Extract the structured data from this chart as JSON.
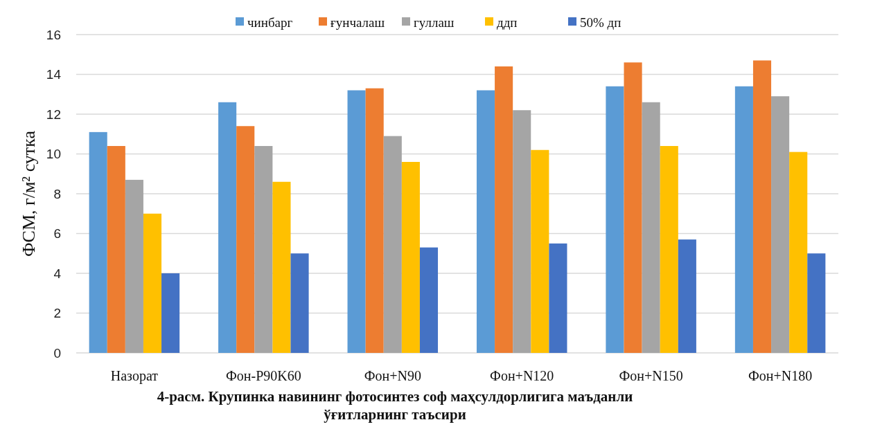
{
  "chart_data": {
    "type": "bar",
    "title": "4-расм. Крупинка навининг фотосинтез соф маҳсулдорлигига маъданли ўғитларнинг таъсири",
    "ylabel": "ФСМ,  г/м² сутка",
    "categories": [
      "Назорат",
      "Фон-P90K60",
      "Фон+N90",
      "Фон+N120",
      "Фон+N150",
      "Фон+N180"
    ],
    "series": [
      {
        "name": "чинбарг",
        "color": "#5b9bd5",
        "values": [
          11.1,
          12.6,
          13.2,
          13.2,
          13.4,
          13.4
        ]
      },
      {
        "name": "ғунчалаш",
        "color": "#ed7d31",
        "values": [
          10.4,
          11.4,
          13.3,
          14.4,
          14.6,
          14.7
        ]
      },
      {
        "name": "гуллаш",
        "color": "#a5a5a5",
        "values": [
          8.7,
          10.4,
          10.9,
          12.2,
          12.6,
          12.9
        ]
      },
      {
        "name": "ддп",
        "color": "#ffc000",
        "values": [
          7.0,
          8.6,
          9.6,
          10.2,
          10.4,
          10.1
        ]
      },
      {
        "name": "50% дп",
        "color": "#4472c4",
        "values": [
          4.0,
          5.0,
          5.3,
          5.5,
          5.7,
          5.0
        ]
      }
    ],
    "ylim": [
      0,
      16
    ],
    "yticks": [
      0,
      2,
      4,
      6,
      8,
      10,
      12,
      14,
      16
    ],
    "grid": "y",
    "legend": "top"
  }
}
